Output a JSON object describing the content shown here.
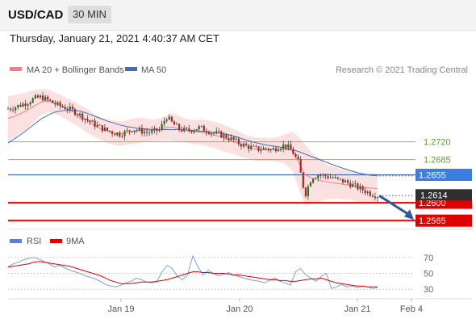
{
  "header": {
    "pair": "USD/CAD",
    "timeframe": "30 MIN",
    "timestamp": "Thursday, January 21, 2021 4:40:37 AM CET"
  },
  "legend": {
    "ma20_label": "MA 20 + Bollinger Bands",
    "ma50_label": "MA 50",
    "credit": "Research © 2021 Trading Central"
  },
  "rsi_legend": {
    "rsi_label": "RSI",
    "ma9_label": "9MA"
  },
  "colors": {
    "ma20": "#f08080",
    "ma50": "#3d6fb5",
    "support": "#e00000",
    "resistance": "#88bb55",
    "up_candle": "#2a6e2a",
    "down_candle": "#b22222",
    "arrow": "#2c5aa0"
  },
  "chart_data": {
    "type": "candlestick",
    "price_ylim": [
      1.2551,
      1.2848
    ],
    "x_labels": [
      "Jan 19",
      "Jan 20",
      "Jan 21",
      "Feb 4"
    ],
    "current_price": "1.2614",
    "levels": [
      {
        "value": 1.272,
        "label": "1.2720",
        "kind": "resistance"
      },
      {
        "value": 1.2685,
        "label": "1.2685",
        "kind": "resistance"
      },
      {
        "value": 1.2655,
        "label": "1.2655",
        "kind": "pivot"
      },
      {
        "value": 1.26,
        "label": "1.2600",
        "kind": "support"
      },
      {
        "value": 1.2565,
        "label": "1.2565",
        "kind": "support"
      }
    ],
    "forecast_target": 1.2565,
    "close_path": [
      1.2785,
      1.2788,
      1.2793,
      1.2798,
      1.2805,
      1.2808,
      1.2802,
      1.2795,
      1.279,
      1.2786,
      1.278,
      1.2772,
      1.2763,
      1.2755,
      1.2748,
      1.2742,
      1.2738,
      1.2735,
      1.274,
      1.2745,
      1.2742,
      1.2738,
      1.274,
      1.2744,
      1.277,
      1.2755,
      1.2745,
      1.2742,
      1.2745,
      1.2748,
      1.2743,
      1.2738,
      1.2735,
      1.273,
      1.2725,
      1.2717,
      1.2712,
      1.2708,
      1.2705,
      1.2707,
      1.2704,
      1.271,
      1.2714,
      1.2703,
      1.268,
      1.2615,
      1.265,
      1.2655,
      1.2653,
      1.265,
      1.2645,
      1.2642,
      1.2636,
      1.263,
      1.2624,
      1.2618,
      1.2614
    ],
    "bollinger_upper": [
      1.281,
      1.2812,
      1.2815,
      1.2818,
      1.2822,
      1.2824,
      1.2823,
      1.2818,
      1.2812,
      1.2805,
      1.28,
      1.2792,
      1.2785,
      1.2775,
      1.2768,
      1.2765,
      1.2762,
      1.276,
      1.2762,
      1.2766,
      1.2768,
      1.2766,
      1.2764,
      1.2766,
      1.2772,
      1.2776,
      1.277,
      1.2765,
      1.2763,
      1.2764,
      1.2763,
      1.276,
      1.2757,
      1.2752,
      1.2746,
      1.274,
      1.2734,
      1.273,
      1.2728,
      1.2728,
      1.2727,
      1.273,
      1.2735,
      1.274,
      1.273,
      1.2715,
      1.27,
      1.2688,
      1.2678,
      1.2672,
      1.2668,
      1.2665,
      1.2662,
      1.266,
      1.2659,
      1.2658,
      1.2657
    ],
    "bollinger_lower": [
      1.2722,
      1.2728,
      1.2738,
      1.2748,
      1.276,
      1.2772,
      1.2778,
      1.2776,
      1.277,
      1.2762,
      1.2755,
      1.2747,
      1.2738,
      1.273,
      1.2724,
      1.2718,
      1.2714,
      1.2712,
      1.2714,
      1.2716,
      1.2718,
      1.272,
      1.2721,
      1.2722,
      1.2723,
      1.2722,
      1.272,
      1.2718,
      1.2716,
      1.2714,
      1.2712,
      1.2708,
      1.2704,
      1.27,
      1.2696,
      1.2692,
      1.2688,
      1.2684,
      1.2682,
      1.2682,
      1.2682,
      1.268,
      1.2676,
      1.2665,
      1.263,
      1.2596,
      1.2598,
      1.2602,
      1.2606,
      1.2608,
      1.2608,
      1.2607,
      1.2605,
      1.2603,
      1.2601,
      1.26,
      1.2598
    ],
    "ma20": [
      1.2766,
      1.277,
      1.2776,
      1.2783,
      1.2791,
      1.2798,
      1.2801,
      1.2797,
      1.2791,
      1.2784,
      1.2778,
      1.277,
      1.2762,
      1.2753,
      1.2746,
      1.2742,
      1.2738,
      1.2736,
      1.2738,
      1.2741,
      1.2743,
      1.2743,
      1.2743,
      1.2744,
      1.2748,
      1.2749,
      1.2745,
      1.2742,
      1.274,
      1.2739,
      1.2738,
      1.2734,
      1.2731,
      1.2726,
      1.2721,
      1.2716,
      1.2711,
      1.2707,
      1.2705,
      1.2705,
      1.2704,
      1.2705,
      1.2706,
      1.2703,
      1.268,
      1.2655,
      1.2649,
      1.2645,
      1.2642,
      1.264,
      1.2638,
      1.2636,
      1.2634,
      1.2632,
      1.263,
      1.2629,
      1.2628
    ],
    "ma50": [
      1.2718,
      1.2726,
      1.2735,
      1.2745,
      1.2755,
      1.2765,
      1.2772,
      1.2778,
      1.2781,
      1.2782,
      1.2782,
      1.278,
      1.2776,
      1.2771,
      1.2766,
      1.2761,
      1.2757,
      1.2753,
      1.275,
      1.2748,
      1.2746,
      1.2745,
      1.2744,
      1.2744,
      1.2744,
      1.2744,
      1.2744,
      1.2743,
      1.2742,
      1.2741,
      1.274,
      1.2739,
      1.2737,
      1.2735,
      1.2732,
      1.2728,
      1.2724,
      1.272,
      1.2717,
      1.2714,
      1.2712,
      1.271,
      1.2708,
      1.2705,
      1.2701,
      1.2696,
      1.2691,
      1.2686,
      1.2681,
      1.2676,
      1.2671,
      1.2667,
      1.2663,
      1.2659,
      1.2656,
      1.2654,
      1.2653
    ],
    "rsi": {
      "ylevels": [
        70,
        50,
        30
      ],
      "ylim": [
        20,
        77
      ],
      "rsi": [
        58,
        62,
        64,
        67,
        69,
        70,
        68,
        65,
        62,
        58,
        60,
        57,
        54,
        52,
        50,
        47,
        45,
        43,
        40,
        36,
        34,
        33,
        35,
        38,
        40,
        44,
        42,
        39,
        38,
        40,
        52,
        60,
        56,
        46,
        42,
        48,
        72,
        58,
        48,
        54,
        50,
        47,
        49,
        51,
        48,
        46,
        44,
        42,
        41,
        40,
        38,
        42,
        44,
        40,
        38,
        35,
        52,
        56,
        48,
        44,
        40,
        46,
        50,
        31,
        33,
        36,
        33,
        34,
        32,
        34,
        33,
        31,
        32
      ],
      "ma9": [
        58,
        59,
        60,
        61,
        62,
        64,
        65,
        64,
        63,
        62,
        61,
        60,
        59,
        57,
        55,
        53,
        51,
        49,
        47,
        44,
        41,
        39,
        37,
        37,
        37,
        38,
        39,
        39,
        39,
        40,
        41,
        42,
        44,
        46,
        48,
        50,
        52,
        52,
        51,
        51,
        50,
        50,
        50,
        49,
        48,
        48,
        47,
        46,
        45,
        44,
        43,
        42,
        42,
        41,
        41,
        40,
        40,
        41,
        42,
        43,
        43,
        44,
        42,
        40,
        38,
        37,
        36,
        35,
        34,
        34,
        33,
        33,
        33
      ]
    }
  }
}
